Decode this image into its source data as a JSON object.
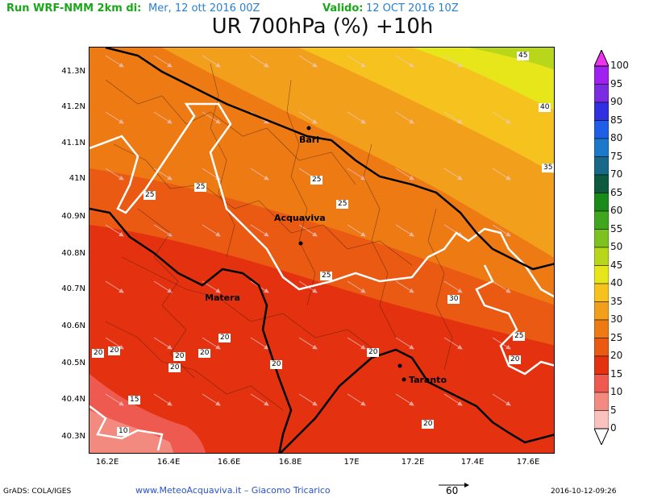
{
  "header": {
    "run_label": "Run WRF-NMM 2km di:",
    "run_date": "Mer, 12 ott 2016 00Z",
    "valid_label": "Valido:",
    "valid_date": "12 OCT 2016 10Z",
    "title": "UR 700hPa (%) +10h"
  },
  "axes": {
    "lat_ticks": [
      "41.3N",
      "41.2N",
      "41.1N",
      "41N",
      "40.9N",
      "40.8N",
      "40.7N",
      "40.6N",
      "40.5N",
      "40.4N",
      "40.3N"
    ],
    "lon_ticks": [
      "16.2E",
      "16.4E",
      "16.6E",
      "16.8E",
      "17E",
      "17.2E",
      "17.4E",
      "17.6E"
    ]
  },
  "cities": [
    {
      "name": "Bari"
    },
    {
      "name": "Acquaviva"
    },
    {
      "name": "Matera"
    },
    {
      "name": "Taranto"
    }
  ],
  "contour_labels": [
    "45",
    "40",
    "35",
    "25",
    "25",
    "25",
    "25",
    "25",
    "30",
    "25",
    "20",
    "20",
    "20",
    "20",
    "20",
    "20",
    "20",
    "20",
    "20",
    "20",
    "15",
    "10"
  ],
  "colorbar": {
    "labels": [
      "100",
      "95",
      "90",
      "85",
      "80",
      "75",
      "70",
      "65",
      "60",
      "55",
      "50",
      "45",
      "40",
      "35",
      "30",
      "25",
      "20",
      "15",
      "10",
      "5",
      "0"
    ],
    "colors": [
      "#ee33ee",
      "#a020f0",
      "#7b2ce0",
      "#3030e0",
      "#1f5fe8",
      "#1c78c8",
      "#186888",
      "#0d5a40",
      "#1a8a1a",
      "#3fa61e",
      "#7cc220",
      "#b8d61a",
      "#e6e61a",
      "#f5c21e",
      "#f2a01c",
      "#ee7a14",
      "#ea5a12",
      "#e43210",
      "#ef5a50",
      "#f38a80",
      "#f9c2bd"
    ],
    "top_color": "#ee33ee",
    "bottom_color": "#ffffff"
  },
  "footer": {
    "grads": "GrADS: COLA/IGES",
    "site": "www.MeteoAcquaviva.it  –  Giacomo Tricarico",
    "vector_ref": "60",
    "timestamp": "2016-10-12-09:26"
  }
}
